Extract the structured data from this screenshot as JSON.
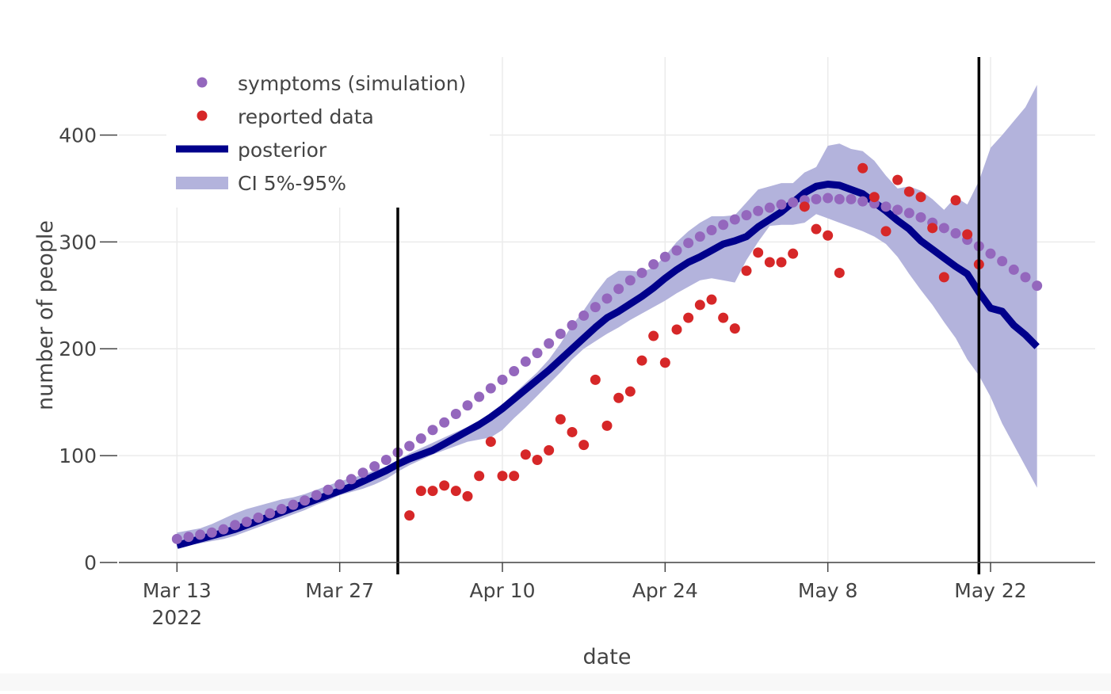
{
  "chart_data": {
    "type": "line",
    "x_label": "date",
    "y_label": "number of people",
    "xlim": [
      "2022-03-08",
      "2022-05-31"
    ],
    "ylim": [
      0,
      473
    ],
    "yticks": [
      0,
      100,
      200,
      300,
      400
    ],
    "xticks": [
      {
        "value": "2022-03-13",
        "label": "Mar 13",
        "sublabel": "2022"
      },
      {
        "value": "2022-03-27",
        "label": "Mar 27"
      },
      {
        "value": "2022-04-10",
        "label": "Apr 10"
      },
      {
        "value": "2022-04-24",
        "label": "Apr 24"
      },
      {
        "value": "2022-05-08",
        "label": "May 8"
      },
      {
        "value": "2022-05-22",
        "label": "May 22"
      }
    ],
    "grid": true,
    "legend": "top-left",
    "vlines": [
      "2022-04-01",
      "2022-05-21"
    ],
    "x": [
      "2022-03-13",
      "2022-03-14",
      "2022-03-15",
      "2022-03-16",
      "2022-03-17",
      "2022-03-18",
      "2022-03-19",
      "2022-03-20",
      "2022-03-21",
      "2022-03-22",
      "2022-03-23",
      "2022-03-24",
      "2022-03-25",
      "2022-03-26",
      "2022-03-27",
      "2022-03-28",
      "2022-03-29",
      "2022-03-30",
      "2022-03-31",
      "2022-04-01",
      "2022-04-02",
      "2022-04-03",
      "2022-04-04",
      "2022-04-05",
      "2022-04-06",
      "2022-04-07",
      "2022-04-08",
      "2022-04-09",
      "2022-04-10",
      "2022-04-11",
      "2022-04-12",
      "2022-04-13",
      "2022-04-14",
      "2022-04-15",
      "2022-04-16",
      "2022-04-17",
      "2022-04-18",
      "2022-04-19",
      "2022-04-20",
      "2022-04-21",
      "2022-04-22",
      "2022-04-23",
      "2022-04-24",
      "2022-04-25",
      "2022-04-26",
      "2022-04-27",
      "2022-04-28",
      "2022-04-29",
      "2022-04-30",
      "2022-05-01",
      "2022-05-02",
      "2022-05-03",
      "2022-05-04",
      "2022-05-05",
      "2022-05-06",
      "2022-05-07",
      "2022-05-08",
      "2022-05-09",
      "2022-05-10",
      "2022-05-11",
      "2022-05-12",
      "2022-05-13",
      "2022-05-14",
      "2022-05-15",
      "2022-05-16",
      "2022-05-17",
      "2022-05-18",
      "2022-05-19",
      "2022-05-20",
      "2022-05-21",
      "2022-05-22",
      "2022-05-23",
      "2022-05-24",
      "2022-05-25",
      "2022-05-26"
    ],
    "series": [
      {
        "name": "symptoms (simulation)",
        "type": "scatter",
        "color": "#9467bd",
        "values": [
          22,
          24,
          26,
          28,
          31,
          35,
          38,
          42,
          46,
          50,
          54,
          58,
          63,
          68,
          73,
          78,
          84,
          90,
          96,
          103,
          109,
          116,
          124,
          131,
          139,
          147,
          155,
          163,
          171,
          179,
          188,
          196,
          205,
          214,
          222,
          231,
          239,
          247,
          256,
          264,
          271,
          279,
          286,
          292,
          299,
          305,
          311,
          316,
          321,
          325,
          329,
          332,
          335,
          337,
          339,
          340,
          341,
          340,
          340,
          338,
          336,
          333,
          330,
          327,
          323,
          318,
          313,
          308,
          302,
          296,
          289,
          282,
          274,
          267,
          259
        ]
      },
      {
        "name": "reported data",
        "type": "scatter",
        "color": "#d62728",
        "x": [
          "2022-04-02",
          "2022-04-03",
          "2022-04-04",
          "2022-04-05",
          "2022-04-06",
          "2022-04-07",
          "2022-04-08",
          "2022-04-09",
          "2022-04-10",
          "2022-04-11",
          "2022-04-12",
          "2022-04-13",
          "2022-04-14",
          "2022-04-15",
          "2022-04-16",
          "2022-04-17",
          "2022-04-18",
          "2022-04-19",
          "2022-04-20",
          "2022-04-21",
          "2022-04-22",
          "2022-04-23",
          "2022-04-24",
          "2022-04-25",
          "2022-04-26",
          "2022-04-27",
          "2022-04-28",
          "2022-04-29",
          "2022-04-30",
          "2022-05-01",
          "2022-05-02",
          "2022-05-03",
          "2022-05-04",
          "2022-05-05",
          "2022-05-06",
          "2022-05-07",
          "2022-05-08",
          "2022-05-09",
          "2022-05-11",
          "2022-05-12",
          "2022-05-13",
          "2022-05-14",
          "2022-05-15",
          "2022-05-16",
          "2022-05-17",
          "2022-05-18",
          "2022-05-19",
          "2022-05-20",
          "2022-05-21"
        ],
        "values": [
          44,
          67,
          67,
          72,
          67,
          62,
          81,
          113,
          81,
          81,
          101,
          96,
          105,
          134,
          122,
          110,
          171,
          128,
          154,
          160,
          189,
          212,
          187,
          218,
          229,
          241,
          246,
          229,
          219,
          273,
          290,
          281,
          281,
          289,
          333,
          312,
          306,
          271,
          369,
          342,
          310,
          358,
          347,
          342,
          313,
          267,
          339,
          307,
          279
        ]
      },
      {
        "name": "posterior",
        "type": "line",
        "color": "#00008b",
        "values": [
          16,
          19,
          22,
          25,
          28,
          31,
          35,
          39,
          43,
          47,
          51,
          55,
          59,
          63,
          67,
          71,
          76,
          81,
          86,
          92,
          97,
          101,
          105,
          111,
          117,
          123,
          129,
          136,
          144,
          153,
          162,
          171,
          180,
          190,
          200,
          210,
          220,
          229,
          235,
          242,
          249,
          257,
          266,
          274,
          281,
          286,
          292,
          298,
          301,
          305,
          314,
          321,
          328,
          337,
          346,
          352,
          354,
          353,
          349,
          345,
          337,
          329,
          320,
          312,
          301,
          293,
          285,
          277,
          270,
          253,
          238,
          235,
          222,
          213,
          202
        ]
      },
      {
        "name": "CI 5%-95%",
        "type": "band",
        "color": "#b3b3dc",
        "upper": [
          28,
          30,
          32,
          36,
          41,
          46,
          50,
          53,
          56,
          59,
          61,
          64,
          68,
          72,
          76,
          79,
          82,
          86,
          90,
          96,
          102,
          107,
          112,
          117,
          122,
          127,
          133,
          139,
          148,
          158,
          168,
          178,
          190,
          205,
          222,
          236,
          252,
          266,
          273,
          273,
          272,
          276,
          287,
          300,
          310,
          318,
          324,
          324,
          325,
          337,
          349,
          352,
          355,
          355,
          365,
          370,
          390,
          392,
          387,
          385,
          376,
          362,
          350,
          352,
          348,
          340,
          330,
          342,
          335,
          357,
          388,
          400,
          413,
          426,
          447
        ],
        "lower": [
          14,
          16,
          18,
          20,
          22,
          25,
          29,
          33,
          37,
          41,
          45,
          49,
          54,
          58,
          63,
          66,
          69,
          73,
          78,
          85,
          91,
          96,
          101,
          105,
          109,
          113,
          115,
          117,
          124,
          135,
          145,
          156,
          167,
          178,
          190,
          200,
          207,
          214,
          220,
          227,
          233,
          239,
          245,
          252,
          258,
          264,
          266,
          264,
          262,
          283,
          300,
          315,
          316,
          316,
          318,
          326,
          322,
          318,
          314,
          310,
          305,
          298,
          286,
          270,
          255,
          241,
          225,
          210,
          190,
          175,
          155,
          130,
          110,
          90,
          70
        ]
      }
    ]
  }
}
